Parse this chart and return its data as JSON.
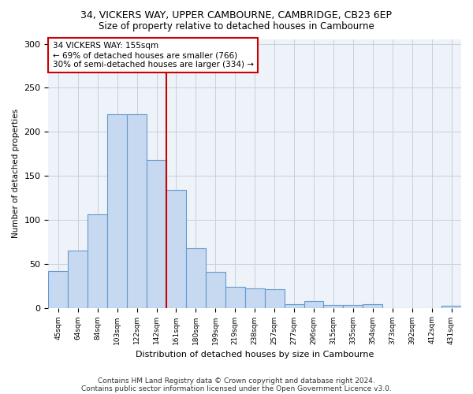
{
  "title_line1": "34, VICKERS WAY, UPPER CAMBOURNE, CAMBRIDGE, CB23 6EP",
  "title_line2": "Size of property relative to detached houses in Cambourne",
  "xlabel": "Distribution of detached houses by size in Cambourne",
  "ylabel": "Number of detached properties",
  "categories": [
    "45sqm",
    "64sqm",
    "84sqm",
    "103sqm",
    "122sqm",
    "142sqm",
    "161sqm",
    "180sqm",
    "199sqm",
    "219sqm",
    "238sqm",
    "257sqm",
    "277sqm",
    "296sqm",
    "315sqm",
    "335sqm",
    "354sqm",
    "373sqm",
    "392sqm",
    "412sqm",
    "431sqm"
  ],
  "values": [
    42,
    65,
    106,
    220,
    220,
    168,
    134,
    68,
    41,
    24,
    22,
    21,
    4,
    8,
    3,
    3,
    4,
    0,
    0,
    0,
    2
  ],
  "bar_color": "#c6d9f0",
  "bar_edge_color": "#6699cc",
  "vline_x_index": 6,
  "vline_color": "#cc0000",
  "annotation_line1": "34 VICKERS WAY: 155sqm",
  "annotation_line2": "← 69% of detached houses are smaller (766)",
  "annotation_line3": "30% of semi-detached houses are larger (334) →",
  "annotation_box_color": "#ffffff",
  "annotation_box_edge": "#cc0000",
  "ylim": [
    0,
    305
  ],
  "yticks": [
    0,
    50,
    100,
    150,
    200,
    250,
    300
  ],
  "footer_line1": "Contains HM Land Registry data © Crown copyright and database right 2024.",
  "footer_line2": "Contains public sector information licensed under the Open Government Licence v3.0.",
  "bg_color": "#ffffff",
  "plot_bg_color": "#eef2f9",
  "grid_color": "#c8d0dc",
  "title_fontsize": 9,
  "subtitle_fontsize": 8.5
}
